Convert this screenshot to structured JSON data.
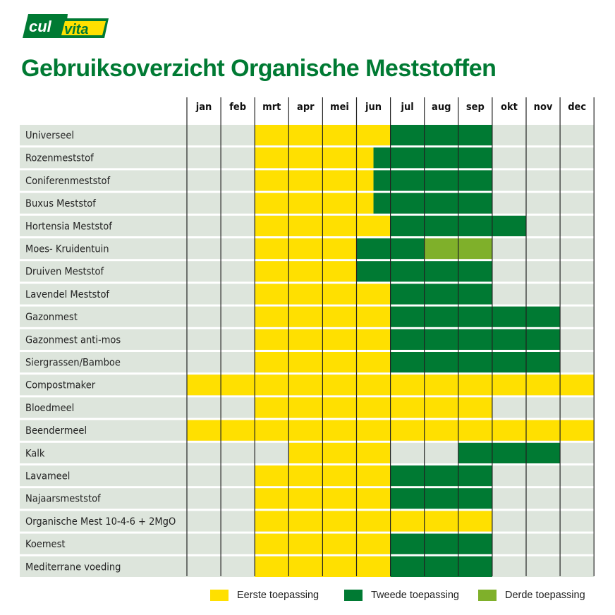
{
  "logo": {
    "text": "culvita",
    "colors": {
      "green": "#007a33",
      "yellow": "#ffe000"
    }
  },
  "title": "Gebruiksoverzicht Organische Meststoffen",
  "colors": {
    "eerste": "#ffe000",
    "tweede": "#007a33",
    "derde": "#7fb02a",
    "background": "#dde5dc"
  },
  "chart_data": {
    "type": "gantt",
    "months": [
      "jan",
      "feb",
      "mrt",
      "apr",
      "mei",
      "jun",
      "jul",
      "aug",
      "sep",
      "okt",
      "nov",
      "dec"
    ],
    "legend": [
      {
        "key": "eerste",
        "label": "Eerste toepassing"
      },
      {
        "key": "tweede",
        "label": "Tweede toepassing"
      },
      {
        "key": "derde",
        "label": "Derde toepassing"
      }
    ],
    "note": "periods in months from start of jan (0) to end of dec (12)",
    "rows": [
      {
        "label": "Universeel",
        "eerste": [
          2,
          6
        ],
        "tweede": [
          6,
          9
        ]
      },
      {
        "label": "Rozenmeststof",
        "eerste": [
          2,
          5.5
        ],
        "tweede": [
          5.5,
          9
        ]
      },
      {
        "label": "Coniferenmeststof",
        "eerste": [
          2,
          5.5
        ],
        "tweede": [
          5.5,
          9
        ]
      },
      {
        "label": "Buxus Meststof",
        "eerste": [
          2,
          5.5
        ],
        "tweede": [
          5.5,
          9
        ]
      },
      {
        "label": "Hortensia Meststof",
        "eerste": [
          2,
          6
        ],
        "tweede": [
          6,
          10
        ]
      },
      {
        "label": "Moes- Kruidentuin",
        "eerste": [
          2,
          5
        ],
        "tweede": [
          5,
          7
        ],
        "derde": [
          7,
          9
        ]
      },
      {
        "label": "Druiven Meststof",
        "eerste": [
          2,
          5
        ],
        "tweede": [
          5,
          9
        ]
      },
      {
        "label": "Lavendel Meststof",
        "eerste": [
          2,
          6
        ],
        "tweede": [
          6,
          9
        ]
      },
      {
        "label": "Gazonmest",
        "eerste": [
          2,
          6
        ],
        "tweede": [
          6,
          11
        ]
      },
      {
        "label": "Gazonmest anti-mos",
        "eerste": [
          2,
          6
        ],
        "tweede": [
          6,
          11
        ]
      },
      {
        "label": "Siergrassen/Bamboe",
        "eerste": [
          2,
          6
        ],
        "tweede": [
          6,
          11
        ]
      },
      {
        "label": "Compostmaker",
        "eerste": [
          0,
          12
        ]
      },
      {
        "label": "Bloedmeel",
        "eerste": [
          2,
          9
        ]
      },
      {
        "label": "Beendermeel",
        "eerste": [
          0,
          12
        ]
      },
      {
        "label": "Kalk",
        "eerste": [
          3,
          6
        ],
        "tweede": [
          8,
          11
        ]
      },
      {
        "label": "Lavameel",
        "eerste": [
          2,
          6
        ],
        "tweede": [
          6,
          9
        ]
      },
      {
        "label": "Najaarsmeststof",
        "eerste": [
          2,
          6
        ],
        "tweede": [
          6,
          9
        ]
      },
      {
        "label": "Organische Mest 10-4-6 + 2MgO",
        "eerste": [
          2,
          9
        ]
      },
      {
        "label": "Koemest",
        "eerste": [
          2,
          6
        ],
        "tweede": [
          6,
          9
        ]
      },
      {
        "label": "Mediterrane voeding",
        "eerste": [
          2,
          6
        ],
        "tweede": [
          6,
          9
        ]
      }
    ]
  }
}
